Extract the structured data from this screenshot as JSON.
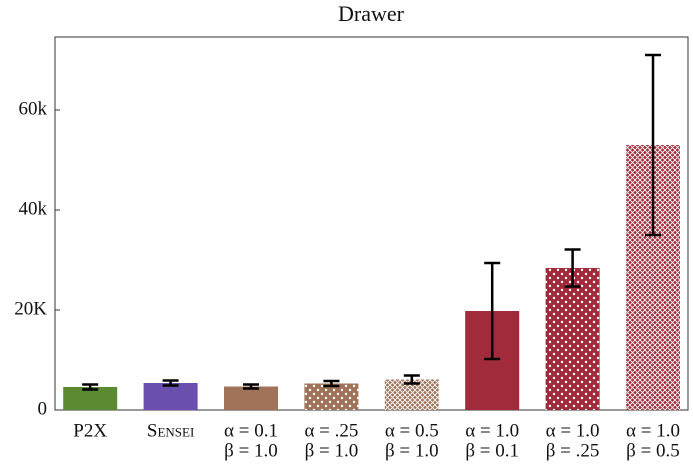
{
  "chart_data": {
    "type": "bar",
    "title": "Drawer",
    "categories": [
      [
        "P2X"
      ],
      [
        "Sensei"
      ],
      [
        "α = 0.1",
        "β = 1.0"
      ],
      [
        "α = .25",
        "β = 1.0"
      ],
      [
        "α = 0.5",
        "β = 1.0"
      ],
      [
        "α = 1.0",
        "β = 0.1"
      ],
      [
        "α = 1.0",
        "β = .25"
      ],
      [
        "α = 1.0",
        "β = 0.5"
      ]
    ],
    "values": [
      4600,
      5400,
      4700,
      5300,
      6100,
      19800,
      28400,
      53000
    ],
    "errors": [
      500,
      500,
      400,
      500,
      800,
      9600,
      3700,
      18000
    ],
    "colors": [
      "#5b8a33",
      "#6a4fae",
      "#a07259",
      "#a07259",
      "#a07259",
      "#a12a3b",
      "#a12a3b",
      "#a12a3b"
    ],
    "patterns": [
      "solid",
      "solid",
      "solid",
      "dots",
      "hatch",
      "solid",
      "dots",
      "hatch"
    ],
    "small_caps": [
      false,
      true,
      false,
      false,
      false,
      false,
      false,
      false
    ],
    "ylim": [
      0,
      74600
    ],
    "yticks": [
      {
        "value": 0,
        "label": "0"
      },
      {
        "value": 20000,
        "label": "20K"
      },
      {
        "value": 40000,
        "label": "40k"
      },
      {
        "value": 60000,
        "label": "60k"
      }
    ]
  }
}
